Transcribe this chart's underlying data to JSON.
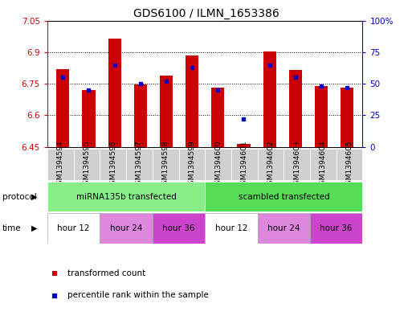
{
  "title": "GDS6100 / ILMN_1653386",
  "samples": [
    "GSM1394594",
    "GSM1394595",
    "GSM1394596",
    "GSM1394597",
    "GSM1394598",
    "GSM1394599",
    "GSM1394600",
    "GSM1394601",
    "GSM1394602",
    "GSM1394603",
    "GSM1394604",
    "GSM1394605"
  ],
  "red_values": [
    6.82,
    6.72,
    6.965,
    6.745,
    6.79,
    6.885,
    6.73,
    6.465,
    6.905,
    6.815,
    6.74,
    6.73
  ],
  "blue_values_pct": [
    55,
    45,
    65,
    50,
    52,
    63,
    45,
    22,
    65,
    55,
    48,
    47
  ],
  "ymin": 6.45,
  "ymax": 7.05,
  "yticks": [
    6.45,
    6.6,
    6.75,
    6.9,
    7.05
  ],
  "ytick_labels": [
    "6.45",
    "6.6",
    "6.75",
    "6.9",
    "7.05"
  ],
  "right_yticks": [
    0,
    25,
    50,
    75,
    100
  ],
  "right_ytick_labels": [
    "0",
    "25",
    "50",
    "75",
    "100%"
  ],
  "bar_color": "#cc0000",
  "blue_color": "#0000cc",
  "bar_width": 0.5,
  "protocol_labels": [
    "miRNA135b transfected",
    "scambled transfected"
  ],
  "protocol_colors": [
    "#88ee88",
    "#55dd55"
  ],
  "time_labels": [
    "hour 12",
    "hour 24",
    "hour 36",
    "hour 12",
    "hour 24",
    "hour 36"
  ],
  "time_colors": [
    "#ffffff",
    "#dd88dd",
    "#cc44cc",
    "#ffffff",
    "#dd88dd",
    "#cc44cc"
  ],
  "sample_bg_color": "#d0d0d0",
  "title_fontsize": 10,
  "tick_fontsize": 7.5,
  "row_fontsize": 7.5,
  "sample_label_fontsize": 6.5
}
